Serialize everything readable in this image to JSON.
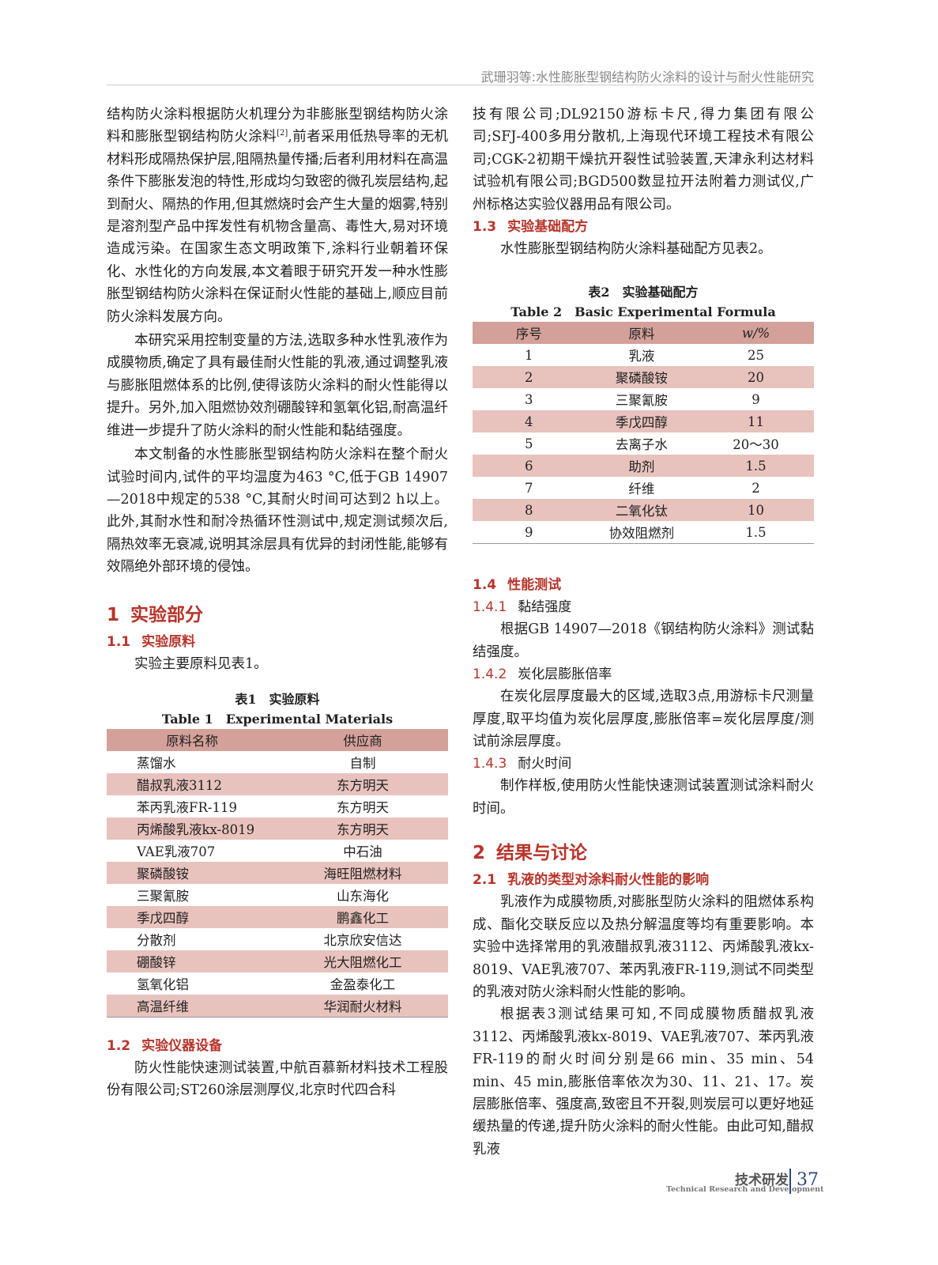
{
  "header": {
    "running_title": "武珊羽等:水性膨胀型钢结构防火涂料的设计与耐火性能研究"
  },
  "left": {
    "p1": "结构防火涂料根据防火机理分为非膨胀型钢结构防火涂料和膨胀型钢结构防火涂料",
    "p1_ref": "[2]",
    "p1_rest": ",前者采用低热导率的无机材料形成隔热保护层,阻隔热量传播;后者利用材料在高温条件下膨胀发泡的特性,形成均匀致密的微孔炭层结构,起到耐火、隔热的作用,但其燃烧时会产生大量的烟雾,特别是溶剂型产品中挥发性有机物含量高、毒性大,易对环境造成污染。在国家生态文明政策下,涂料行业朝着环保化、水性化的方向发展,本文着眼于研究开发一种水性膨胀型钢结构防火涂料在保证耐火性能的基础上,顺应目前防火涂料发展方向。",
    "p2": "本研究采用控制变量的方法,选取多种水性乳液作为成膜物质,确定了具有最佳耐火性能的乳液,通过调整乳液与膨胀阻燃体系的比例,使得该防火涂料的耐火性能得以提升。另外,加入阻燃协效剂硼酸锌和氢氧化铝,耐高温纤维进一步提升了防火涂料的耐火性能和黏结强度。",
    "p3": "本文制备的水性膨胀型钢结构防火涂料在整个耐火试验时间内,试件的平均温度为463 °C,低于GB 14907—2018中规定的538 °C,其耐火时间可达到2 h以上。此外,其耐水性和耐冷热循环性测试中,规定测试频次后,隔热效率无衰减,说明其涂层具有优异的封闭性能,能够有效隔绝外部环境的侵蚀。",
    "s1_num": "1",
    "s1_title": "实验部分",
    "s11_num": "1.1",
    "s11_title": "实验原料",
    "s11_text": "实验主要原料见表1。",
    "table1": {
      "caption_cn": "表1　实验原料",
      "caption_en": "Table 1　Experimental Materials",
      "headers": [
        "原料名称",
        "供应商"
      ],
      "rows": [
        [
          "蒸馏水",
          "自制"
        ],
        [
          "醋叔乳液3112",
          "东方明天"
        ],
        [
          "苯丙乳液FR-119",
          "东方明天"
        ],
        [
          "丙烯酸乳液kx-8019",
          "东方明天"
        ],
        [
          "VAE乳液707",
          "中石油"
        ],
        [
          "聚磷酸铵",
          "海旺阻燃材料"
        ],
        [
          "三聚氰胺",
          "山东海化"
        ],
        [
          "季戊四醇",
          "鹏鑫化工"
        ],
        [
          "分散剂",
          "北京欣安信达"
        ],
        [
          "硼酸锌",
          "光大阻燃化工"
        ],
        [
          "氢氧化铝",
          "金盈泰化工"
        ],
        [
          "高温纤维",
          "华润耐火材料"
        ]
      ]
    },
    "s12_num": "1.2",
    "s12_title": "实验仪器设备",
    "s12_text": "防火性能快速测试装置,中航百慕新材料技术工程股份有限公司;ST260涂层测厚仪,北京时代四合科"
  },
  "right": {
    "p1": "技有限公司;DL92150游标卡尺,得力集团有限公司;SFJ-400多用分散机,上海现代环境工程技术有限公司;CGK-2初期干燥抗开裂性试验装置,天津永利达材料试验机有限公司;BGD500数显拉开法附着力测试仪,广州标格达实验仪器用品有限公司。",
    "s13_num": "1.3",
    "s13_title": "实验基础配方",
    "s13_text": "水性膨胀型钢结构防火涂料基础配方见表2。",
    "table2": {
      "caption_cn": "表2　实验基础配方",
      "caption_en": "Table 2　Basic Experimental Formula",
      "headers": [
        "序号",
        "原料",
        "w/%"
      ],
      "rows": [
        [
          "1",
          "乳液",
          "25"
        ],
        [
          "2",
          "聚磷酸铵",
          "20"
        ],
        [
          "3",
          "三聚氰胺",
          "9"
        ],
        [
          "4",
          "季戊四醇",
          "11"
        ],
        [
          "5",
          "去离子水",
          "20～30"
        ],
        [
          "6",
          "助剂",
          "1.5"
        ],
        [
          "7",
          "纤维",
          "2"
        ],
        [
          "8",
          "二氧化钛",
          "10"
        ],
        [
          "9",
          "协效阻燃剂",
          "1.5"
        ]
      ]
    },
    "s14_num": "1.4",
    "s14_title": "性能测试",
    "s141_num": "1.4.1",
    "s141_title": "黏结强度",
    "s141_text": "根据GB 14907—2018《钢结构防火涂料》测试黏结强度。",
    "s142_num": "1.4.2",
    "s142_title": "炭化层膨胀倍率",
    "s142_text": "在炭化层厚度最大的区域,选取3点,用游标卡尺测量厚度,取平均值为炭化层厚度,膨胀倍率=炭化层厚度/测试前涂层厚度。",
    "s143_num": "1.4.3",
    "s143_title": "耐火时间",
    "s143_text": "制作样板,使用防火性能快速测试装置测试涂料耐火时间。",
    "s2_num": "2",
    "s2_title": "结果与讨论",
    "s21_num": "2.1",
    "s21_title": "乳液的类型对涂料耐火性能的影响",
    "s21_p1": "乳液作为成膜物质,对膨胀型防火涂料的阻燃体系构成、酯化交联反应以及热分解温度等均有重要影响。本实验中选择常用的乳液醋叔乳液3112、丙烯酸乳液kx-8019、VAE乳液707、苯丙乳液FR-119,测试不同类型的乳液对防火涂料耐火性能的影响。",
    "s21_p2": "根据表3测试结果可知,不同成膜物质醋叔乳液3112、丙烯酸乳液kx-8019、VAE乳液707、苯丙乳液FR-119的耐火时间分别是66 min、35 min、54 min、45 min,膨胀倍率依次为30、11、21、17。炭层膨胀倍率、强度高,致密且不开裂,则炭层可以更好地延缓热量的传递,提升防火涂料的耐火性能。由此可知,醋叔乳液"
  },
  "footer": {
    "section_cn": "技术研发",
    "section_en": "Technical Research and Development",
    "page_number": "37"
  },
  "colors": {
    "heading": "#b8342a",
    "table_header": "#d4a09a",
    "table_stripe": "#e8c2bd",
    "footer_accent": "#2d4a7a"
  }
}
